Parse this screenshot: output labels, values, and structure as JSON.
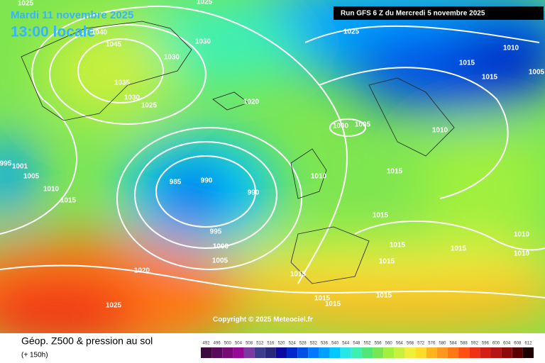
{
  "header": {
    "date": "Mardi 11 novembre 2025",
    "time": "13:00 locale",
    "run": "Run GFS 6 Z du Mercredi 5 novembre 2025"
  },
  "isobar_labels": [
    1025,
    1040,
    1045,
    1030,
    1030,
    1035,
    1030,
    1025,
    1020,
    1025,
    1010,
    1015,
    1015,
    1005,
    1000,
    1005,
    1010,
    1015,
    1010,
    1005,
    1010,
    1015,
    1001,
    995,
    985,
    990,
    990,
    995,
    1000,
    1005,
    1020,
    1025,
    1015,
    1015,
    1015,
    1015,
    1015,
    1015,
    1015,
    1015,
    1010,
    1010,
    1025
  ],
  "footer": {
    "title": "Géop. Z500 & pression au sol",
    "subtitle": "(+ 150h)",
    "copyright": "Copyright © 2025 Meteociel.fr"
  },
  "colorbar": {
    "values": [
      492,
      496,
      500,
      504,
      508,
      512,
      516,
      520,
      524,
      528,
      532,
      536,
      540,
      544,
      548,
      552,
      556,
      560,
      564,
      568,
      572,
      576,
      580,
      584,
      588,
      592,
      596,
      600,
      604,
      608,
      612
    ],
    "colors": [
      "#3c0a3c",
      "#5a0a5a",
      "#780a78",
      "#960a96",
      "#7a3aa0",
      "#3c3c8c",
      "#28287d",
      "#0a0aa0",
      "#0028c8",
      "#0050e6",
      "#0078ff",
      "#00a0ff",
      "#00c8ff",
      "#28e6e6",
      "#3cf0b4",
      "#50e678",
      "#78e650",
      "#a0f03c",
      "#c8f03c",
      "#f0f03c",
      "#ffdc28",
      "#ffb41e",
      "#ff961e",
      "#ff7814",
      "#ff5014",
      "#f03214",
      "#d21e14",
      "#b41414",
      "#8c0a0a",
      "#5a0000",
      "#1e0000"
    ]
  }
}
